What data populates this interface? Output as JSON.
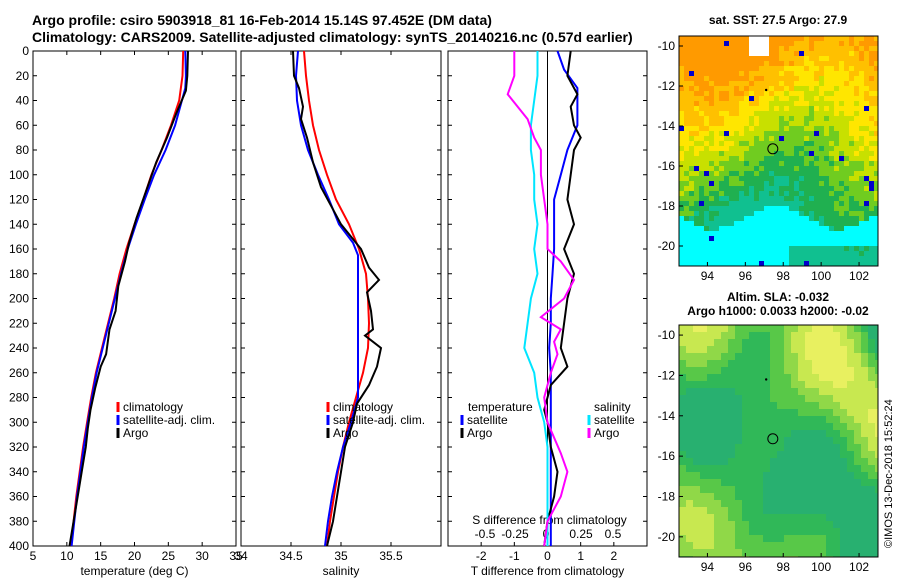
{
  "title": {
    "line1": "Argo profile: csiro 5903918_81 16-Feb-2014 15.14S 97.452E (DM data)",
    "line2": "Climatology: CARS2009. Satellite-adjusted climatology: synTS_20140216.nc (0.57d earlier)"
  },
  "credit": "©IMOS 13-Dec-2018 15:52:24",
  "colors": {
    "climatology": "#ff0000",
    "satellite": "#0000ff",
    "argo": "#000000",
    "sat_salinity": "#00e5ff",
    "argo_salinity": "#ff00ff"
  },
  "chart_data": [
    {
      "type": "line",
      "name": "temperature-profile",
      "xlabel": "temperature (deg C)",
      "ylabel": "",
      "xlim": [
        5,
        35
      ],
      "ylim": [
        400,
        0
      ],
      "xticks": [
        "5",
        "10",
        "15",
        "20",
        "25",
        "30",
        "35"
      ],
      "yticks": [
        "0",
        "20",
        "40",
        "60",
        "80",
        "100",
        "120",
        "140",
        "160",
        "180",
        "200",
        "220",
        "240",
        "260",
        "280",
        "300",
        "320",
        "340",
        "360",
        "380",
        "400"
      ],
      "legend": [
        "climatology",
        "satellite-adj. clim.",
        "Argo"
      ],
      "series": [
        {
          "name": "climatology",
          "color": "#ff0000",
          "points": [
            [
              27.2,
              0
            ],
            [
              27.1,
              20
            ],
            [
              26.6,
              40
            ],
            [
              25.4,
              60
            ],
            [
              24.0,
              80
            ],
            [
              22.5,
              100
            ],
            [
              21.3,
              120
            ],
            [
              20.0,
              140
            ],
            [
              18.8,
              160
            ],
            [
              17.8,
              180
            ],
            [
              17.0,
              200
            ],
            [
              16.1,
              220
            ],
            [
              15.2,
              240
            ],
            [
              14.3,
              260
            ],
            [
              13.6,
              280
            ],
            [
              13.0,
              300
            ],
            [
              12.4,
              320
            ],
            [
              11.9,
              340
            ],
            [
              11.4,
              360
            ],
            [
              11.0,
              380
            ],
            [
              10.6,
              400
            ]
          ]
        },
        {
          "name": "satellite-adj. clim.",
          "color": "#0000ff",
          "points": [
            [
              27.5,
              0
            ],
            [
              27.6,
              20
            ],
            [
              27.5,
              30
            ],
            [
              26.0,
              60
            ],
            [
              24.6,
              80
            ],
            [
              22.9,
              100
            ],
            [
              21.5,
              120
            ],
            [
              20.2,
              140
            ],
            [
              19.0,
              160
            ],
            [
              18.0,
              180
            ],
            [
              17.1,
              200
            ],
            [
              16.2,
              220
            ],
            [
              15.3,
              240
            ],
            [
              14.4,
              260
            ],
            [
              13.7,
              280
            ],
            [
              13.1,
              300
            ],
            [
              12.5,
              320
            ],
            [
              12.0,
              340
            ],
            [
              11.5,
              360
            ],
            [
              11.1,
              380
            ],
            [
              10.7,
              400
            ]
          ]
        },
        {
          "name": "Argo",
          "color": "#000000",
          "points": [
            [
              27.9,
              0
            ],
            [
              27.8,
              20
            ],
            [
              27.6,
              32
            ],
            [
              26.2,
              50
            ],
            [
              24.8,
              70
            ],
            [
              23.2,
              90
            ],
            [
              21.6,
              115
            ],
            [
              20.3,
              135
            ],
            [
              19.2,
              155
            ],
            [
              18.6,
              170
            ],
            [
              17.6,
              190
            ],
            [
              17.2,
              210
            ],
            [
              16.3,
              225
            ],
            [
              15.8,
              245
            ],
            [
              15.0,
              255
            ],
            [
              14.2,
              272
            ],
            [
              13.5,
              290
            ],
            [
              13.1,
              305
            ],
            [
              12.8,
              320
            ],
            [
              12.2,
              340
            ],
            [
              11.6,
              360
            ],
            [
              11.0,
              380
            ],
            [
              10.4,
              400
            ]
          ]
        }
      ]
    },
    {
      "type": "line",
      "name": "salinity-profile",
      "xlabel": "salinity",
      "xlim": [
        34,
        36
      ],
      "ylim": [
        400,
        0
      ],
      "xticks": [
        "34",
        "34.5",
        "35",
        "35.5"
      ],
      "legend": [
        "climatology",
        "satellite-adj. clim.",
        "Argo"
      ],
      "series": [
        {
          "name": "climatology",
          "color": "#ff0000",
          "points": [
            [
              34.63,
              0
            ],
            [
              34.65,
              20
            ],
            [
              34.68,
              40
            ],
            [
              34.72,
              60
            ],
            [
              34.78,
              80
            ],
            [
              34.86,
              100
            ],
            [
              34.95,
              120
            ],
            [
              35.08,
              140
            ],
            [
              35.18,
              160
            ],
            [
              35.25,
              180
            ],
            [
              35.27,
              200
            ],
            [
              35.28,
              220
            ],
            [
              35.27,
              240
            ],
            [
              35.22,
              260
            ],
            [
              35.15,
              280
            ],
            [
              35.08,
              300
            ],
            [
              35.02,
              320
            ],
            [
              34.97,
              340
            ],
            [
              34.93,
              360
            ],
            [
              34.89,
              380
            ],
            [
              34.86,
              400
            ]
          ]
        },
        {
          "name": "satellite-adj. clim.",
          "color": "#0000ff",
          "points": [
            [
              34.57,
              0
            ],
            [
              34.55,
              20
            ],
            [
              34.56,
              40
            ],
            [
              34.6,
              60
            ],
            [
              34.67,
              80
            ],
            [
              34.77,
              100
            ],
            [
              34.88,
              120
            ],
            [
              34.98,
              140
            ],
            [
              35.12,
              155
            ],
            [
              35.17,
              165
            ],
            [
              35.17,
              200
            ],
            [
              35.17,
              240
            ],
            [
              35.17,
              280
            ],
            [
              35.1,
              300
            ],
            [
              35.02,
              320
            ],
            [
              34.96,
              340
            ],
            [
              34.91,
              360
            ],
            [
              34.87,
              380
            ],
            [
              34.84,
              400
            ]
          ]
        },
        {
          "name": "Argo",
          "color": "#000000",
          "points": [
            [
              34.52,
              0
            ],
            [
              34.53,
              20
            ],
            [
              34.58,
              30
            ],
            [
              34.62,
              45
            ],
            [
              34.6,
              55
            ],
            [
              34.66,
              70
            ],
            [
              34.72,
              90
            ],
            [
              34.8,
              110
            ],
            [
              34.9,
              125
            ],
            [
              35.0,
              140
            ],
            [
              35.2,
              160
            ],
            [
              35.28,
              175
            ],
            [
              35.38,
              185
            ],
            [
              35.26,
              195
            ],
            [
              35.3,
              210
            ],
            [
              35.32,
              225
            ],
            [
              35.24,
              230
            ],
            [
              35.4,
              240
            ],
            [
              35.36,
              255
            ],
            [
              35.28,
              270
            ],
            [
              35.16,
              285
            ],
            [
              35.12,
              300
            ],
            [
              35.04,
              320
            ],
            [
              35.0,
              340
            ],
            [
              34.96,
              360
            ],
            [
              34.92,
              380
            ],
            [
              34.86,
              400
            ]
          ]
        }
      ]
    },
    {
      "type": "line",
      "name": "difference-profile",
      "xlabel": "T difference from climatology",
      "xlabel_top": "S difference from climatology",
      "xlim": [
        -3,
        3
      ],
      "ylim": [
        400,
        0
      ],
      "xticks": [
        "-2",
        "-1",
        "0",
        "1",
        "2"
      ],
      "xticks_top": [
        "-0.5",
        "-0.25",
        "0",
        "0.25",
        "0.5"
      ],
      "legend_temperature": {
        "heading": "temperature",
        "items": [
          "satellite",
          "Argo"
        ]
      },
      "legend_salinity": {
        "heading": "salinity",
        "items": [
          "satellite",
          "Argo"
        ]
      },
      "series": [
        {
          "name": "T satellite",
          "color": "#0000ff",
          "points": [
            [
              0.3,
              0
            ],
            [
              0.5,
              15
            ],
            [
              0.9,
              30
            ],
            [
              0.9,
              60
            ],
            [
              0.6,
              80
            ],
            [
              0.4,
              100
            ],
            [
              0.2,
              120
            ],
            [
              0.2,
              140
            ],
            [
              0.2,
              160
            ],
            [
              0.15,
              180
            ],
            [
              0.1,
              200
            ],
            [
              0.1,
              220
            ],
            [
              0.05,
              240
            ],
            [
              0.1,
              260
            ],
            [
              0.1,
              280
            ],
            [
              0.1,
              300
            ],
            [
              0.1,
              320
            ],
            [
              0.1,
              340
            ],
            [
              0.1,
              360
            ],
            [
              0.1,
              380
            ],
            [
              0.1,
              400
            ]
          ]
        },
        {
          "name": "T Argo",
          "color": "#000000",
          "points": [
            [
              0.7,
              0
            ],
            [
              0.6,
              20
            ],
            [
              0.9,
              35
            ],
            [
              0.7,
              45
            ],
            [
              0.8,
              60
            ],
            [
              1.0,
              70
            ],
            [
              0.8,
              80
            ],
            [
              0.7,
              100
            ],
            [
              0.6,
              120
            ],
            [
              0.8,
              140
            ],
            [
              0.5,
              160
            ],
            [
              0.8,
              180
            ],
            [
              0.6,
              200
            ],
            [
              0.5,
              220
            ],
            [
              0.4,
              240
            ],
            [
              0.6,
              255
            ],
            [
              0.1,
              270
            ],
            [
              -0.1,
              290
            ],
            [
              0.0,
              300
            ],
            [
              0.1,
              320
            ],
            [
              0.3,
              340
            ],
            [
              0.2,
              360
            ],
            [
              0.0,
              380
            ],
            [
              -0.1,
              400
            ]
          ]
        },
        {
          "name": "S satellite",
          "color": "#00e5ff",
          "points": [
            [
              -0.3,
              0
            ],
            [
              -0.3,
              20
            ],
            [
              -0.4,
              40
            ],
            [
              -0.5,
              60
            ],
            [
              -0.5,
              80
            ],
            [
              -0.4,
              100
            ],
            [
              -0.4,
              120
            ],
            [
              -0.3,
              140
            ],
            [
              -0.4,
              160
            ],
            [
              -0.3,
              180
            ],
            [
              -0.5,
              200
            ],
            [
              -0.6,
              220
            ],
            [
              -0.7,
              240
            ],
            [
              -0.4,
              260
            ],
            [
              -0.3,
              280
            ],
            [
              -0.1,
              300
            ],
            [
              0.0,
              320
            ],
            [
              0.0,
              340
            ],
            [
              0.0,
              360
            ],
            [
              0.0,
              380
            ],
            [
              0.0,
              400
            ]
          ]
        },
        {
          "name": "S Argo",
          "color": "#ff00ff",
          "points": [
            [
              -1.0,
              0
            ],
            [
              -1.0,
              20
            ],
            [
              -1.2,
              35
            ],
            [
              -0.6,
              55
            ],
            [
              -0.4,
              70
            ],
            [
              -0.2,
              80
            ],
            [
              -0.2,
              100
            ],
            [
              -0.1,
              120
            ],
            [
              0.0,
              140
            ],
            [
              0.0,
              160
            ],
            [
              0.4,
              170
            ],
            [
              0.8,
              185
            ],
            [
              0.5,
              200
            ],
            [
              -0.2,
              215
            ],
            [
              0.4,
              225
            ],
            [
              0.2,
              235
            ],
            [
              0.3,
              245
            ],
            [
              0.1,
              260
            ],
            [
              -0.1,
              280
            ],
            [
              0.0,
              300
            ],
            [
              0.4,
              325
            ],
            [
              0.6,
              340
            ],
            [
              0.4,
              360
            ],
            [
              0.0,
              380
            ],
            [
              -0.1,
              400
            ]
          ]
        }
      ]
    },
    {
      "type": "heatmap",
      "name": "sst-map",
      "title": "sat. SST: 27.5 Argo: 27.9",
      "xlim": [
        92.5,
        103
      ],
      "ylim": [
        -21,
        -9.5
      ],
      "xticks": [
        "94",
        "96",
        "98",
        "100",
        "102"
      ],
      "yticks": [
        "-10",
        "-12",
        "-14",
        "-16",
        "-18",
        "-20"
      ],
      "argo_position": [
        97.45,
        -15.14
      ],
      "track_point": [
        97.1,
        -12.2
      ]
    },
    {
      "type": "heatmap",
      "name": "sla-map",
      "title": "Altim. SLA: -0.032",
      "subtitle": "Argo h1000: 0.0033 h2000: -0.02",
      "xlim": [
        92.5,
        103
      ],
      "ylim": [
        -21,
        -9.5
      ],
      "xticks": [
        "94",
        "96",
        "98",
        "100",
        "102"
      ],
      "yticks": [
        "-10",
        "-12",
        "-14",
        "-16",
        "-18",
        "-20"
      ],
      "argo_position": [
        97.45,
        -15.14
      ],
      "track_point": [
        97.1,
        -12.2
      ]
    }
  ]
}
